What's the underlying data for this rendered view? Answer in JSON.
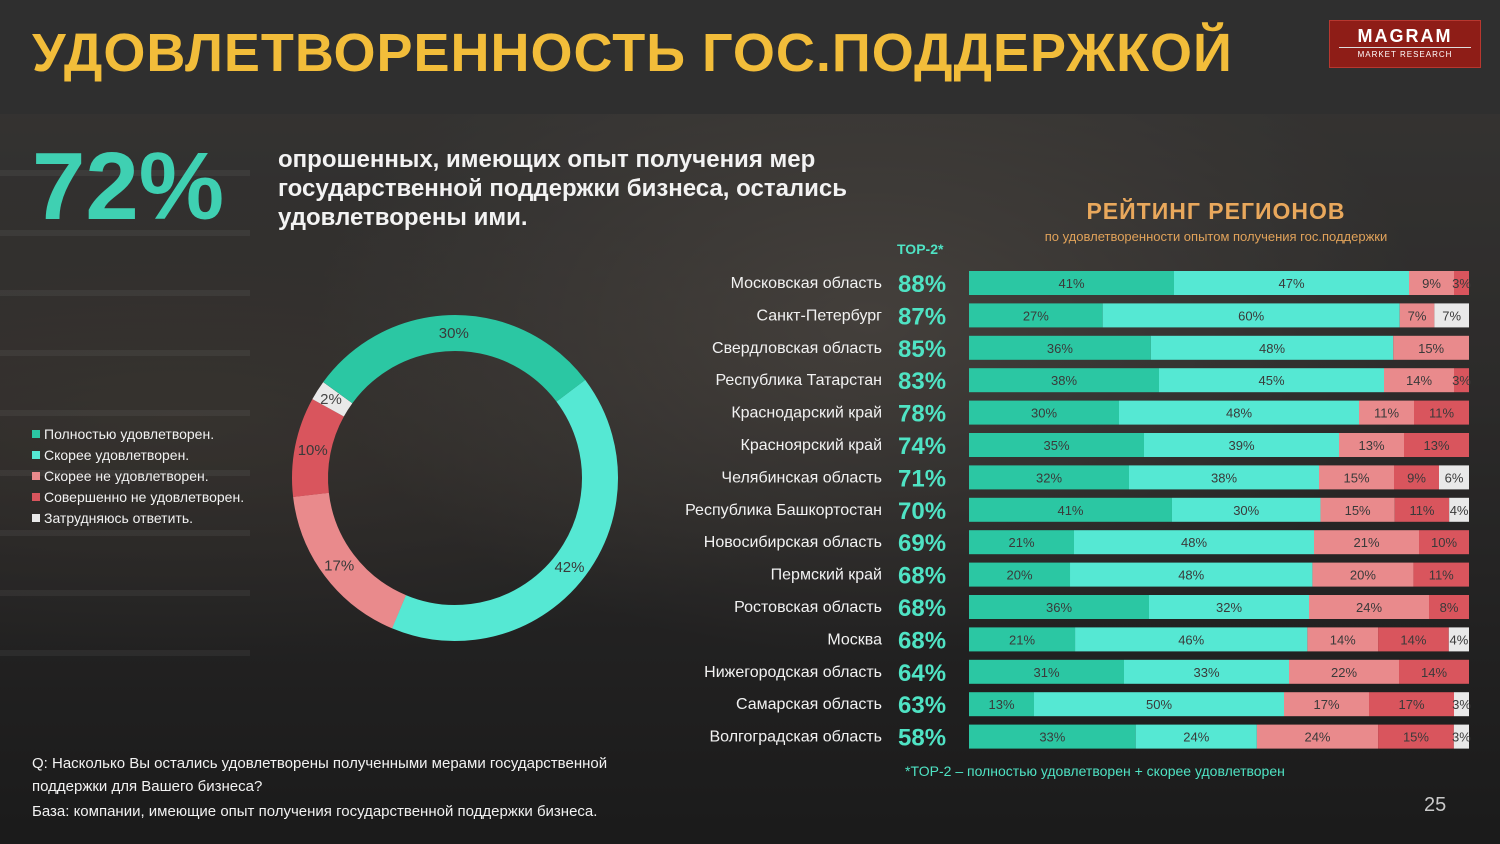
{
  "header": {
    "title": "УДОВЛЕТВОРЕННОСТЬ ГОС.ПОДДЕРЖКОЙ",
    "logo_main": "MAGRAM",
    "logo_sub": "MARKET RESEARCH"
  },
  "headline": {
    "percent": "72%",
    "text": "опрошенных, имеющих опыт получения мер государственной поддержки бизнеса, остались удовлетворены ими."
  },
  "colors": {
    "full": "#2bc7a3",
    "rather": "#55e8d3",
    "rather_not": "#e98a8c",
    "not": "#d9555d",
    "unsure": "#e9e9e9"
  },
  "chart_data": [
    {
      "type": "pie",
      "variant": "donut",
      "labels": [
        "Полностью удовлетворен.",
        "Скорее удовлетворен.",
        "Скорее не удовлетворен.",
        "Совершенно не удовлетворен.",
        "Затрудняюсь ответить."
      ],
      "values": [
        30,
        42,
        17,
        10,
        2
      ],
      "value_labels": [
        "30%",
        "42%",
        "17%",
        "10%",
        "2%"
      ],
      "legend_position": "left"
    },
    {
      "type": "bar",
      "orientation": "horizontal",
      "stacked": true,
      "title": "РЕЙТИНГ РЕГИОНОВ",
      "subtitle": "по удовлетворенности опытом получения гос.поддержки",
      "top2_header": "TOP-2*",
      "categories": [
        "Московская область",
        "Санкт-Петербург",
        "Свердловская область",
        "Республика Татарстан",
        "Краснодарский край",
        "Красноярский край",
        "Челябинская область",
        "Республика Башкортостан",
        "Новосибирская область",
        "Пермский край",
        "Ростовская область",
        "Москва",
        "Нижегородская область",
        "Самарская область",
        "Волгоградская область"
      ],
      "top2": [
        "88%",
        "87%",
        "85%",
        "83%",
        "78%",
        "74%",
        "71%",
        "70%",
        "69%",
        "68%",
        "68%",
        "68%",
        "64%",
        "63%",
        "58%"
      ],
      "series": [
        {
          "key": "full",
          "values": [
            41,
            27,
            36,
            38,
            30,
            35,
            32,
            41,
            21,
            20,
            36,
            21,
            31,
            13,
            33
          ]
        },
        {
          "key": "rather",
          "values": [
            47,
            60,
            48,
            45,
            48,
            39,
            38,
            30,
            48,
            48,
            32,
            46,
            33,
            50,
            24
          ]
        },
        {
          "key": "rather_not",
          "values": [
            9,
            7,
            15,
            14,
            11,
            13,
            15,
            15,
            21,
            20,
            24,
            14,
            22,
            17,
            24
          ]
        },
        {
          "key": "not",
          "values": [
            3,
            0,
            0,
            3,
            11,
            13,
            9,
            11,
            10,
            11,
            8,
            14,
            14,
            17,
            15
          ]
        },
        {
          "key": "unsure",
          "values": [
            0,
            7,
            0,
            0,
            0,
            0,
            6,
            4,
            0,
            0,
            0,
            4,
            0,
            3,
            3
          ]
        }
      ],
      "footnote": "*TOP-2 – полностью удовлетворен + скорее удовлетворен"
    }
  ],
  "footer": {
    "question": "Q: Насколько Вы остались удовлетворены полученными мерами государственной поддержки для Вашего бизнеса?",
    "base": "База: компании, имеющие опыт получения государственной поддержки бизнеса.",
    "page_number": "25"
  }
}
